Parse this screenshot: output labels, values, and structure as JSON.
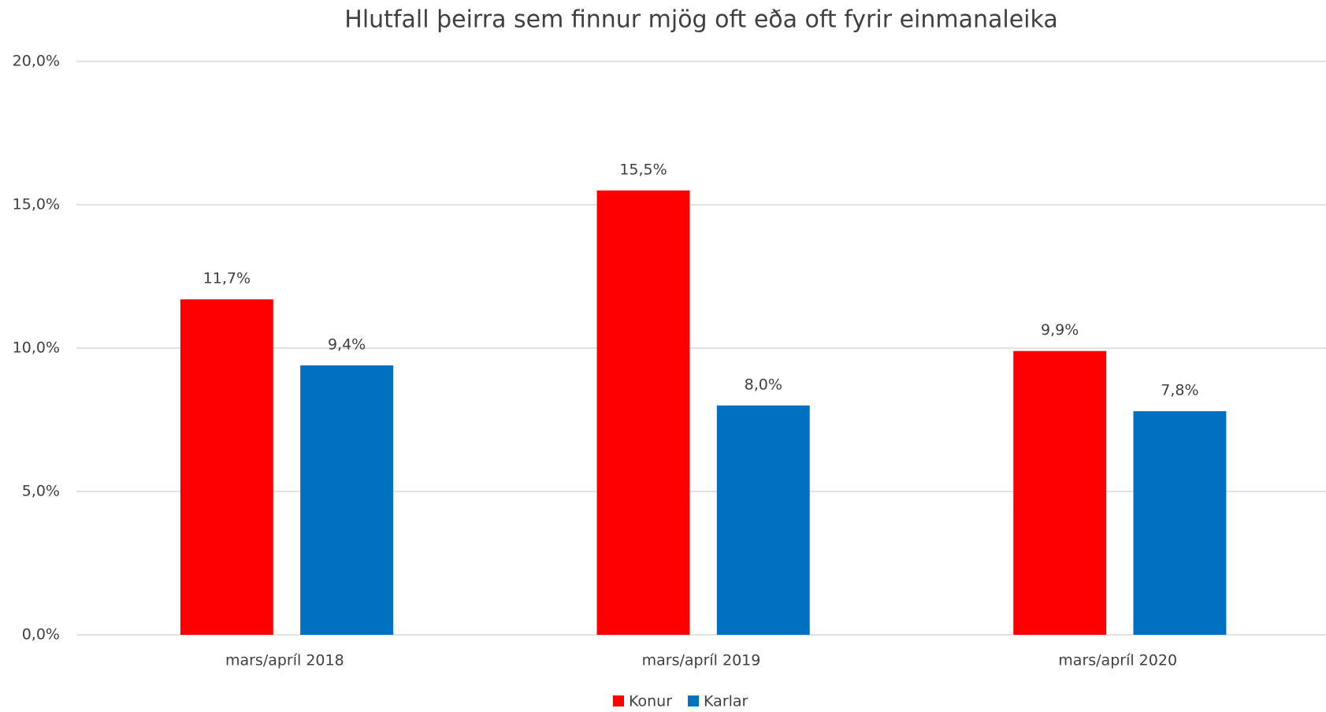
{
  "chart_data": {
    "type": "bar",
    "title": "Hlutfall þeirra sem finnur mjög oft eða oft fyrir einmanaleika",
    "categories": [
      "mars/apríl 2018",
      "mars/apríl 2019",
      "mars/apríl 2020"
    ],
    "series": [
      {
        "name": "Konur",
        "color": "#ff0000",
        "values": [
          11.7,
          15.5,
          9.9
        ],
        "value_labels": [
          "11,7%",
          "15,5%",
          "9,9%"
        ]
      },
      {
        "name": "Karlar",
        "color": "#0070c0",
        "values": [
          9.4,
          8.0,
          7.8
        ],
        "value_labels": [
          "9,4%",
          "8,0%",
          "7,8%"
        ]
      }
    ],
    "ylim": [
      0,
      20
    ],
    "yticks": [
      {
        "value": 0,
        "label": "0,0%"
      },
      {
        "value": 5,
        "label": "5,0%"
      },
      {
        "value": 10,
        "label": "10,0%"
      },
      {
        "value": 15,
        "label": "15,0%"
      },
      {
        "value": 20,
        "label": "20,0%"
      }
    ],
    "grid": true,
    "legend": "bottom"
  }
}
